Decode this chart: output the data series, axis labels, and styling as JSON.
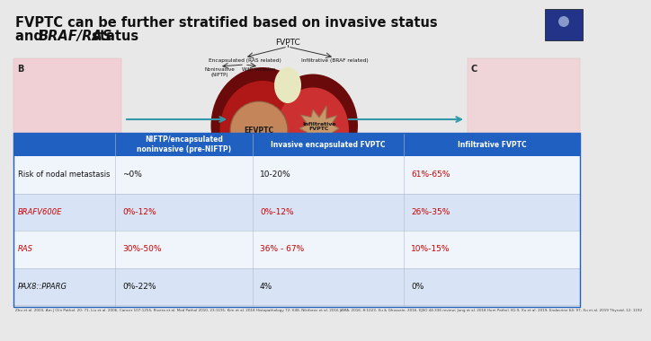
{
  "bg_color": "#e8e8e8",
  "title_color": "#111111",
  "title_line1": "FVPTC can be further stratified based on invasive status",
  "title_line2_pre": "and ",
  "title_line2_italic": "BRAF/RAS",
  "title_line2_post": " status",
  "table_header_bg": "#2060c0",
  "table_header_color": "#ffffff",
  "table_row_bg_light": "#d8e4f5",
  "table_row_bg_white": "#f0f5fc",
  "table_border_color": "#2060c0",
  "table_col0_color": "#111111",
  "table_red_color": "#cc0000",
  "col_headers": [
    "",
    "NIFTP/encapsulated\nnoninvasive (pre-NIFTP)",
    "Invasive encapsulated FVPTC",
    "Infiltrative FVPTC"
  ],
  "row_labels": [
    "Risk of nodal metastasis",
    "BRAFV600E",
    "RAS",
    "PAX8::PPARG"
  ],
  "col1_values": [
    "~0%",
    "0%-12%",
    "30%-50%",
    "0%-22%"
  ],
  "col2_values": [
    "10-20%",
    "0%-12%",
    "36% - 67%",
    "4%"
  ],
  "col3_values": [
    "61%-65%",
    "26%-35%",
    "10%-15%",
    "0%"
  ],
  "col1_colors": [
    "#111111",
    "#cc0000",
    "#cc0000",
    "#111111"
  ],
  "col2_colors": [
    "#111111",
    "#cc0000",
    "#cc0000",
    "#111111"
  ],
  "col3_colors": [
    "#cc0000",
    "#cc0000",
    "#cc0000",
    "#111111"
  ],
  "row_label_colors": [
    "#111111",
    "#cc0000",
    "#cc0000",
    "#111111"
  ],
  "row_label_italic": [
    false,
    true,
    true,
    true
  ],
  "footnote": "Zhu et al. 2003, Am J Clin Pathol. 20: 71, Liu et al. 2006, Cancer 107:1255, Rivera et al. Mod Pathol 2010, 23:1191, Kim et al. 2018 Histopathology 72: 648, Nikiforov et al. 2016 JAMA. 2016; 8:1023, Xu & Ghossein, 2016, EJSO 44:336 review; Jung et al. 2018 Hum Pathol. 81:9, Xu et al. 2019, Endocrine 64: 97, Xu et al. 2019 Thyroid. 12: 1192",
  "footnote_color": "#444444",
  "diagram_fvptc_label": "FVPTC",
  "diagram_enc_label": "Encapsulated (RAS related)",
  "diagram_inf_label": "Infiltrative (BRAF related)",
  "diagram_noninv_label": "Noninvasive\n(NIFTP)",
  "diagram_withinv_label": "With invasion",
  "efvptc_label": "EFVPTC",
  "inf_fvptc_label": "Infiltrative\nFVPTC",
  "B_label": "B",
  "C_label": "C",
  "arrow_color": "#3399aa",
  "diagram_line_color": "#333333",
  "thyroid_dark": "#6b0a0a",
  "thyroid_mid": "#b01818",
  "thyroid_light": "#cc3030",
  "efvptc_color": "#c4855a",
  "inf_fvptc_color": "#c8976a",
  "hist_left_bg": "#f0d0d5",
  "hist_right_bg": "#f0d5d8",
  "speaker_bg": "#223388"
}
